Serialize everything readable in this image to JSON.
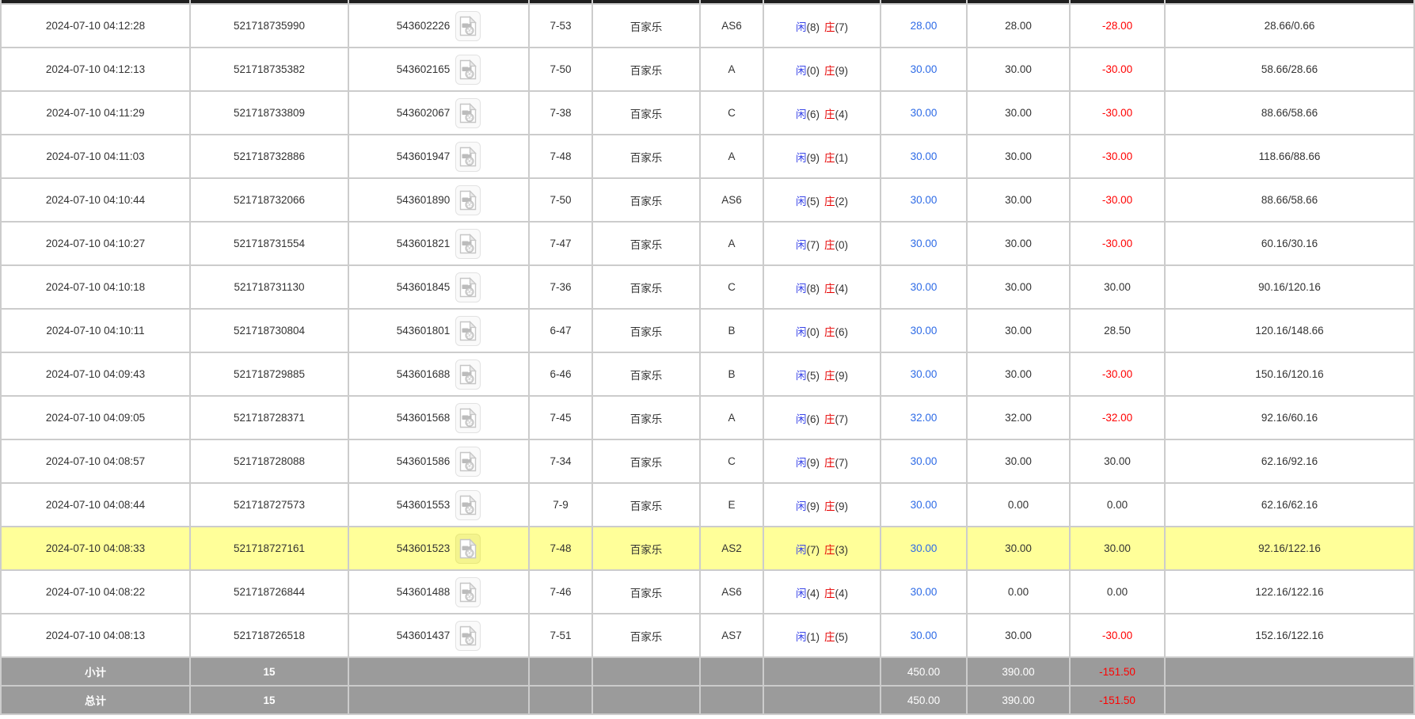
{
  "table": {
    "rows": [
      {
        "time": "2024-07-10 04:12:28",
        "order_id": "521718735990",
        "round_id": "543602226",
        "table_round": "7-53",
        "game": "百家乐",
        "bet_code": "AS6",
        "player": "闲",
        "player_score": "(8)",
        "banker": "庄",
        "banker_score": "(7)",
        "bet_amount": "28.00",
        "valid_amount": "28.00",
        "win_loss": "-28.00",
        "balance": "28.66/0.66",
        "highlight": false
      },
      {
        "time": "2024-07-10 04:12:13",
        "order_id": "521718735382",
        "round_id": "543602165",
        "table_round": "7-50",
        "game": "百家乐",
        "bet_code": "A",
        "player": "闲",
        "player_score": "(0)",
        "banker": "庄",
        "banker_score": "(9)",
        "bet_amount": "30.00",
        "valid_amount": "30.00",
        "win_loss": "-30.00",
        "balance": "58.66/28.66",
        "highlight": false
      },
      {
        "time": "2024-07-10 04:11:29",
        "order_id": "521718733809",
        "round_id": "543602067",
        "table_round": "7-38",
        "game": "百家乐",
        "bet_code": "C",
        "player": "闲",
        "player_score": "(6)",
        "banker": "庄",
        "banker_score": "(4)",
        "bet_amount": "30.00",
        "valid_amount": "30.00",
        "win_loss": "-30.00",
        "balance": "88.66/58.66",
        "highlight": false
      },
      {
        "time": "2024-07-10 04:11:03",
        "order_id": "521718732886",
        "round_id": "543601947",
        "table_round": "7-48",
        "game": "百家乐",
        "bet_code": "A",
        "player": "闲",
        "player_score": "(9)",
        "banker": "庄",
        "banker_score": "(1)",
        "bet_amount": "30.00",
        "valid_amount": "30.00",
        "win_loss": "-30.00",
        "balance": "118.66/88.66",
        "highlight": false
      },
      {
        "time": "2024-07-10 04:10:44",
        "order_id": "521718732066",
        "round_id": "543601890",
        "table_round": "7-50",
        "game": "百家乐",
        "bet_code": "AS6",
        "player": "闲",
        "player_score": "(5)",
        "banker": "庄",
        "banker_score": "(2)",
        "bet_amount": "30.00",
        "valid_amount": "30.00",
        "win_loss": "-30.00",
        "balance": "88.66/58.66",
        "highlight": false
      },
      {
        "time": "2024-07-10 04:10:27",
        "order_id": "521718731554",
        "round_id": "543601821",
        "table_round": "7-47",
        "game": "百家乐",
        "bet_code": "A",
        "player": "闲",
        "player_score": "(7)",
        "banker": "庄",
        "banker_score": "(0)",
        "bet_amount": "30.00",
        "valid_amount": "30.00",
        "win_loss": "-30.00",
        "balance": "60.16/30.16",
        "highlight": false
      },
      {
        "time": "2024-07-10 04:10:18",
        "order_id": "521718731130",
        "round_id": "543601845",
        "table_round": "7-36",
        "game": "百家乐",
        "bet_code": "C",
        "player": "闲",
        "player_score": "(8)",
        "banker": "庄",
        "banker_score": "(4)",
        "bet_amount": "30.00",
        "valid_amount": "30.00",
        "win_loss": "30.00",
        "balance": "90.16/120.16",
        "highlight": false
      },
      {
        "time": "2024-07-10 04:10:11",
        "order_id": "521718730804",
        "round_id": "543601801",
        "table_round": "6-47",
        "game": "百家乐",
        "bet_code": "B",
        "player": "闲",
        "player_score": "(0)",
        "banker": "庄",
        "banker_score": "(6)",
        "bet_amount": "30.00",
        "valid_amount": "30.00",
        "win_loss": "28.50",
        "balance": "120.16/148.66",
        "highlight": false
      },
      {
        "time": "2024-07-10 04:09:43",
        "order_id": "521718729885",
        "round_id": "543601688",
        "table_round": "6-46",
        "game": "百家乐",
        "bet_code": "B",
        "player": "闲",
        "player_score": "(5)",
        "banker": "庄",
        "banker_score": "(9)",
        "bet_amount": "30.00",
        "valid_amount": "30.00",
        "win_loss": "-30.00",
        "balance": "150.16/120.16",
        "highlight": false
      },
      {
        "time": "2024-07-10 04:09:05",
        "order_id": "521718728371",
        "round_id": "543601568",
        "table_round": "7-45",
        "game": "百家乐",
        "bet_code": "A",
        "player": "闲",
        "player_score": "(6)",
        "banker": "庄",
        "banker_score": "(7)",
        "bet_amount": "32.00",
        "valid_amount": "32.00",
        "win_loss": "-32.00",
        "balance": "92.16/60.16",
        "highlight": false
      },
      {
        "time": "2024-07-10 04:08:57",
        "order_id": "521718728088",
        "round_id": "543601586",
        "table_round": "7-34",
        "game": "百家乐",
        "bet_code": "C",
        "player": "闲",
        "player_score": "(9)",
        "banker": "庄",
        "banker_score": "(7)",
        "bet_amount": "30.00",
        "valid_amount": "30.00",
        "win_loss": "30.00",
        "balance": "62.16/92.16",
        "highlight": false
      },
      {
        "time": "2024-07-10 04:08:44",
        "order_id": "521718727573",
        "round_id": "543601553",
        "table_round": "7-9",
        "game": "百家乐",
        "bet_code": "E",
        "player": "闲",
        "player_score": "(9)",
        "banker": "庄",
        "banker_score": "(9)",
        "bet_amount": "30.00",
        "valid_amount": "0.00",
        "win_loss": "0.00",
        "balance": "62.16/62.16",
        "highlight": false
      },
      {
        "time": "2024-07-10 04:08:33",
        "order_id": "521718727161",
        "round_id": "543601523",
        "table_round": "7-48",
        "game": "百家乐",
        "bet_code": "AS2",
        "player": "闲",
        "player_score": "(7)",
        "banker": "庄",
        "banker_score": "(3)",
        "bet_amount": "30.00",
        "valid_amount": "30.00",
        "win_loss": "30.00",
        "balance": "92.16/122.16",
        "highlight": true
      },
      {
        "time": "2024-07-10 04:08:22",
        "order_id": "521718726844",
        "round_id": "543601488",
        "table_round": "7-46",
        "game": "百家乐",
        "bet_code": "AS6",
        "player": "闲",
        "player_score": "(4)",
        "banker": "庄",
        "banker_score": "(4)",
        "bet_amount": "30.00",
        "valid_amount": "0.00",
        "win_loss": "0.00",
        "balance": "122.16/122.16",
        "highlight": false
      },
      {
        "time": "2024-07-10 04:08:13",
        "order_id": "521718726518",
        "round_id": "543601437",
        "table_round": "7-51",
        "game": "百家乐",
        "bet_code": "AS7",
        "player": "闲",
        "player_score": "(1)",
        "banker": "庄",
        "banker_score": "(5)",
        "bet_amount": "30.00",
        "valid_amount": "30.00",
        "win_loss": "-30.00",
        "balance": "152.16/122.16",
        "highlight": false
      }
    ],
    "summary_rows": [
      {
        "label": "小计",
        "count": "15",
        "bet_total": "450.00",
        "valid_total": "390.00",
        "win_loss_total": "-151.50"
      },
      {
        "label": "总计",
        "count": "15",
        "bet_total": "450.00",
        "valid_total": "390.00",
        "win_loss_total": "-151.50"
      }
    ]
  },
  "icons": {
    "video_replay": "video-replay-icon"
  },
  "colors": {
    "accent_blue": "#2E6BE6",
    "player_blue": "#3A46E8",
    "banker_red": "#E60000",
    "loss_red": "#FF0000",
    "highlight_yellow": "#FFFF99",
    "summary_gray": "#9B9B9B",
    "header_black": "#1F1F1F",
    "grid_gray": "#CCCCCC"
  }
}
